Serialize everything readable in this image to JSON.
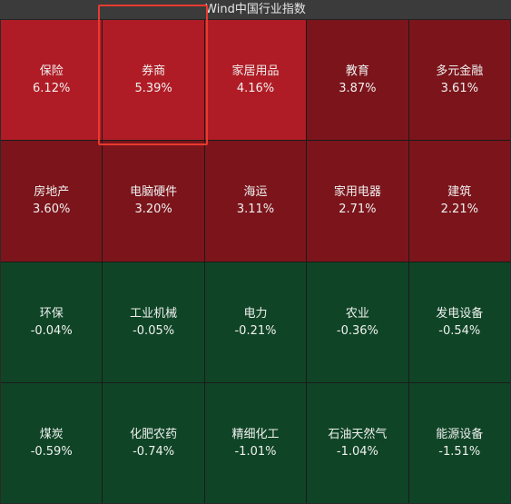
{
  "title": "Wind中国行业指数",
  "colors": {
    "strong_red": "#b01c25",
    "dark_red": "#7b151b",
    "dark_green": "#0f4526",
    "selection": "#e83a2f"
  },
  "tiles": [
    {
      "name": "保险",
      "pct": "6.12%",
      "tone": "strong_red"
    },
    {
      "name": "券商",
      "pct": "5.39%",
      "tone": "strong_red"
    },
    {
      "name": "家居用品",
      "pct": "4.16%",
      "tone": "strong_red"
    },
    {
      "name": "教育",
      "pct": "3.87%",
      "tone": "dark_red"
    },
    {
      "name": "多元金融",
      "pct": "3.61%",
      "tone": "dark_red"
    },
    {
      "name": "房地产",
      "pct": "3.60%",
      "tone": "dark_red"
    },
    {
      "name": "电脑硬件",
      "pct": "3.20%",
      "tone": "dark_red"
    },
    {
      "name": "海运",
      "pct": "3.11%",
      "tone": "dark_red"
    },
    {
      "name": "家用电器",
      "pct": "2.71%",
      "tone": "dark_red"
    },
    {
      "name": "建筑",
      "pct": "2.21%",
      "tone": "dark_red"
    },
    {
      "name": "环保",
      "pct": "-0.04%",
      "tone": "dark_green"
    },
    {
      "name": "工业机械",
      "pct": "-0.05%",
      "tone": "dark_green"
    },
    {
      "name": "电力",
      "pct": "-0.21%",
      "tone": "dark_green"
    },
    {
      "name": "农业",
      "pct": "-0.36%",
      "tone": "dark_green"
    },
    {
      "name": "发电设备",
      "pct": "-0.54%",
      "tone": "dark_green"
    },
    {
      "name": "煤炭",
      "pct": "-0.59%",
      "tone": "dark_green"
    },
    {
      "name": "化肥农药",
      "pct": "-0.74%",
      "tone": "dark_green"
    },
    {
      "name": "精细化工",
      "pct": "-1.01%",
      "tone": "dark_green"
    },
    {
      "name": "石油天然气",
      "pct": "-1.04%",
      "tone": "dark_green"
    },
    {
      "name": "能源设备",
      "pct": "-1.51%",
      "tone": "dark_green"
    }
  ]
}
